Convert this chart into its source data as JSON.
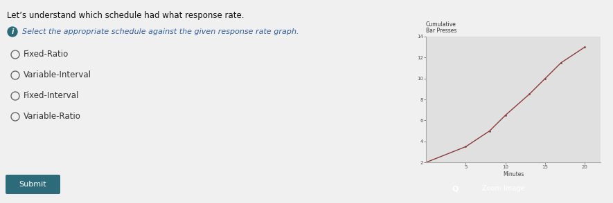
{
  "title": "Let’s understand which schedule had what response rate.",
  "instruction": "Select the appropriate schedule against the given response rate graph.",
  "options": [
    "Fixed-Ratio",
    "Variable-Interval",
    "Fixed-Interval",
    "Variable-Ratio"
  ],
  "graph_ylabel_line1": "Cumulative",
  "graph_ylabel_line2": "Bar Presses",
  "graph_xlabel": "Minutes",
  "x_ticks": [
    5,
    10,
    15,
    20
  ],
  "x_lim": [
    0,
    22
  ],
  "y_lim": [
    2,
    14
  ],
  "y_ticks": [
    2,
    4,
    6,
    8,
    10,
    12,
    14
  ],
  "line_x": [
    0,
    5,
    8,
    10,
    13,
    15,
    17,
    20
  ],
  "line_y": [
    2.0,
    3.5,
    5.0,
    6.5,
    8.5,
    10.0,
    11.5,
    13.0
  ],
  "line_color": "#8B3A3A",
  "bg_color": "#f0f0f0",
  "graph_bg": "#e0e0e0",
  "submit_btn_color": "#2d6b7a",
  "zoom_btn_color": "#2d7a7a",
  "info_icon_color": "#2d6b7a",
  "option_circle_color": "#666666",
  "title_color": "#111111",
  "instruction_color": "#2d5fa0",
  "option_color": "#333333"
}
